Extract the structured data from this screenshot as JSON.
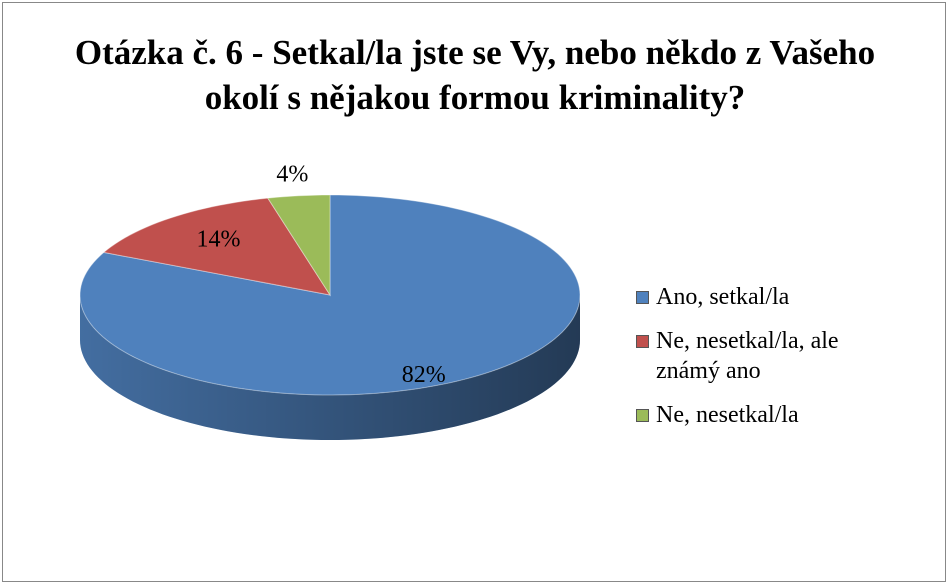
{
  "chart_data": {
    "type": "pie",
    "title": "Otázka č. 6 - Setkal/la jste se Vy, nebo někdo z Vašeho okolí s nějakou formou kriminality?",
    "categories": [
      "Ano, setkal/la",
      "Ne, nesetkal/la, ale známý ano",
      "Ne, nesetkal/la"
    ],
    "values": [
      82,
      14,
      4
    ],
    "value_labels": [
      "82%",
      "14%",
      "4%"
    ],
    "colors": [
      "#4f81bd",
      "#c0504d",
      "#9bbb59"
    ],
    "legend": "right"
  }
}
